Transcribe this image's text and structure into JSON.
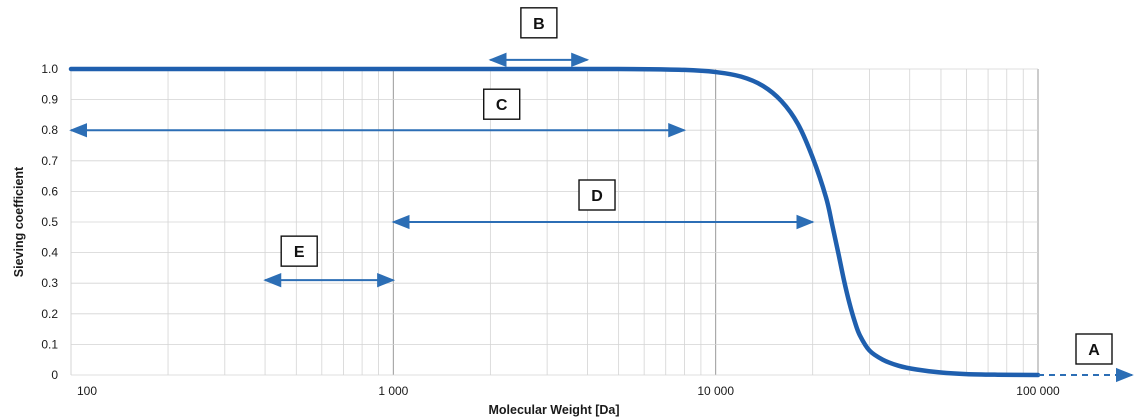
{
  "chart_data": {
    "type": "line",
    "title": "",
    "xlabel": "Molecular Weight [Da]",
    "ylabel": "Sieving coefficient",
    "xscale": "log",
    "xlim": [
      100,
      100000
    ],
    "ylim": [
      0,
      1.0
    ],
    "grid": true,
    "x_ticks": [
      {
        "value": 100,
        "label": "100"
      },
      {
        "value": 1000,
        "label": "1 000"
      },
      {
        "value": 10000,
        "label": "10 000"
      },
      {
        "value": 100000,
        "label": "100 000"
      }
    ],
    "y_ticks": [
      {
        "value": 0,
        "label": "0"
      },
      {
        "value": 0.1,
        "label": "0.1"
      },
      {
        "value": 0.2,
        "label": "0.2"
      },
      {
        "value": 0.3,
        "label": "0.3"
      },
      {
        "value": 0.4,
        "label": "0.4"
      },
      {
        "value": 0.5,
        "label": "0.5"
      },
      {
        "value": 0.6,
        "label": "0.6"
      },
      {
        "value": 0.7,
        "label": "0.7"
      },
      {
        "value": 0.8,
        "label": "0.8"
      },
      {
        "value": 0.9,
        "label": "0.9"
      },
      {
        "value": 1.0,
        "label": "1.0"
      }
    ],
    "series": [
      {
        "color": "#1f5fae",
        "x": [
          100,
          1000,
          5000,
          8000,
          10000,
          12000,
          14000,
          16000,
          18000,
          20000,
          22000,
          23000,
          24000,
          25000,
          26000,
          27000,
          28000,
          30000,
          33000,
          37000,
          42000,
          50000,
          60000,
          75000,
          100000
        ],
        "y": [
          1.0,
          1.0,
          1.0,
          0.997,
          0.99,
          0.975,
          0.945,
          0.895,
          0.82,
          0.71,
          0.58,
          0.49,
          0.4,
          0.31,
          0.235,
          0.175,
          0.13,
          0.08,
          0.05,
          0.03,
          0.018,
          0.008,
          0.003,
          0.001,
          0.0
        ]
      }
    ],
    "annotations": [
      {
        "label": "A",
        "x1": 100000,
        "x2": 400000,
        "y": 0,
        "style": "dashed",
        "arrow": "right"
      },
      {
        "label": "B",
        "x1": 2000,
        "x2": 4000,
        "y": 1.03,
        "style": "solid",
        "arrow": "both"
      },
      {
        "label": "C",
        "x1": 100,
        "x2": 8000,
        "y": 0.8,
        "style": "solid",
        "arrow": "both"
      },
      {
        "label": "D",
        "x1": 1000,
        "x2": 20000,
        "y": 0.5,
        "style": "solid",
        "arrow": "both"
      },
      {
        "label": "E",
        "x1": 400,
        "x2": 1000,
        "y": 0.31,
        "style": "solid",
        "arrow": "both"
      }
    ],
    "colors": {
      "curve": "#1f5fae",
      "arrow": "#2c6eb5",
      "grid": "#d4d4d4",
      "grid_major": "#999999"
    }
  }
}
